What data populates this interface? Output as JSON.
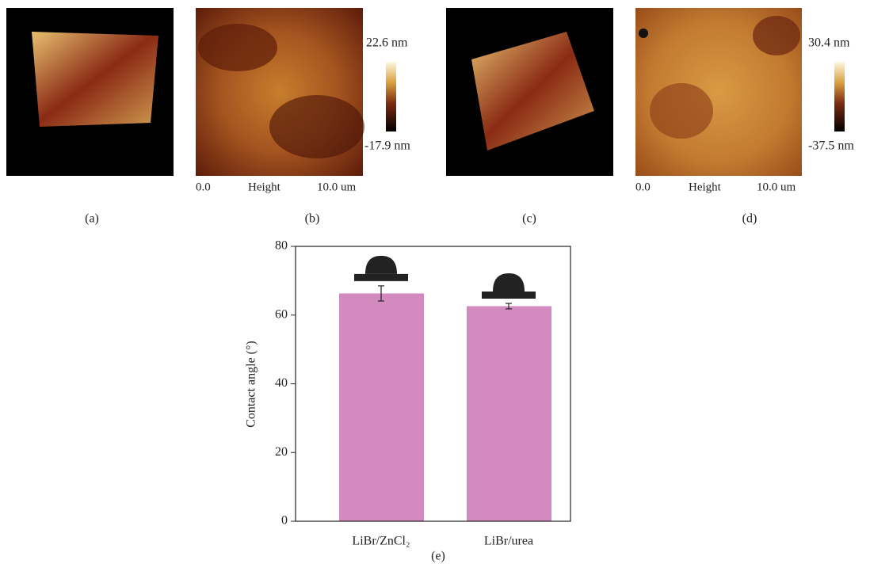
{
  "panels": [
    {
      "label": "(a)"
    },
    {
      "label": "(b)",
      "scale_max": "22.6 nm",
      "scale_min": "-17.9 nm",
      "axis_start": "0.0",
      "axis_title": "Height",
      "axis_end": "10.0 um"
    },
    {
      "label": "(c)"
    },
    {
      "label": "(d)",
      "scale_max": "30.4 nm",
      "scale_min": "-37.5 nm",
      "axis_start": "0.0",
      "axis_title": "Height",
      "axis_end": "10.0 um"
    }
  ],
  "chart_data": {
    "type": "bar",
    "label": "(e)",
    "ylabel": "Contact angle (°)",
    "categories": [
      "LiBr/ZnCl₂",
      "LiBr/urea"
    ],
    "values": [
      66.3,
      62.6
    ],
    "errors": [
      2.2,
      0.8
    ],
    "color": "#d38bbf",
    "ylim": [
      0,
      80
    ],
    "yticks": [
      0,
      20,
      40,
      60,
      80
    ]
  }
}
